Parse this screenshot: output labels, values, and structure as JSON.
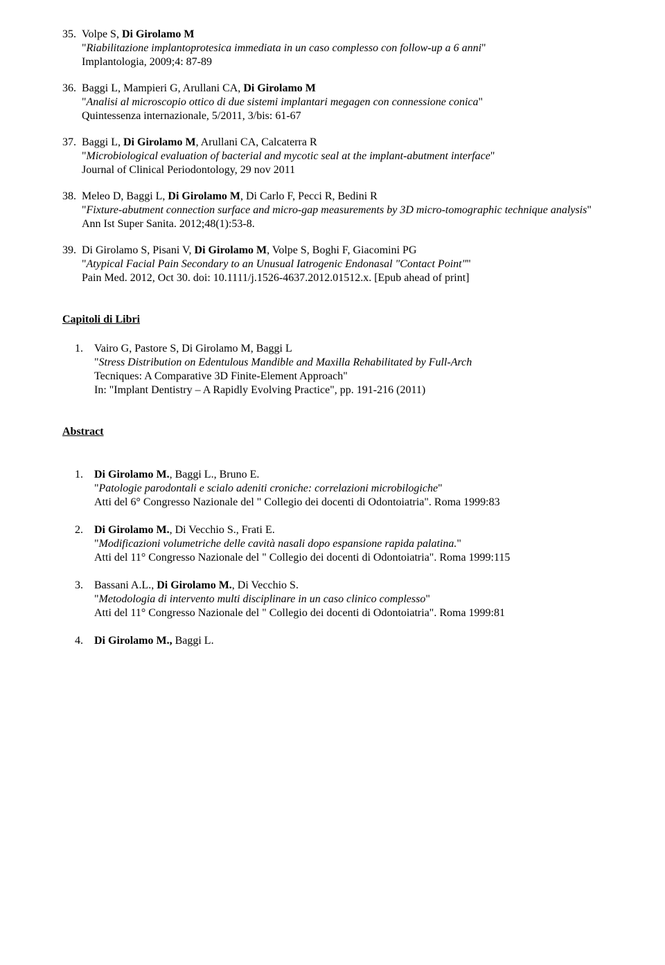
{
  "refs": [
    {
      "n": "35.",
      "authors_pre": "Volpe S, ",
      "authors_bold": "Di Girolamo M",
      "title_open": "\"",
      "title": "Riabilitazione implantoprotesica immediata in un caso complesso con follow-up a 6 anni",
      "title_close": "\"",
      "journal": "Implantologia, 2009;4: 87-89"
    },
    {
      "n": "36.",
      "authors_pre": "Baggi L, Mampieri G, Arullani CA, ",
      "authors_bold": "Di Girolamo M",
      "title_open": "\"",
      "title": "Analisi al microscopio ottico di due sistemi implantari megagen con connessione conica",
      "title_close": "\"",
      "journal": "Quintessenza internazionale, 5/2011, 3/bis: 61-67"
    },
    {
      "n": "37.",
      "authors_pre": "Baggi L, ",
      "authors_bold": "Di Girolamo M",
      "authors_post": ", Arullani CA, Calcaterra R",
      "title_open": "\"",
      "title": "Microbiological evaluation of bacterial and mycotic seal at the implant-abutment interface",
      "title_close": "\"",
      "journal": "Journal of Clinical Periodontology, 29 nov 2011"
    },
    {
      "n": "38.",
      "authors_pre": "Meleo D, Baggi L, ",
      "authors_bold": "Di Girolamo M",
      "authors_post": ", Di Carlo F, Pecci R, Bedini R",
      "title_open": "\"",
      "title": "Fixture-abutment connection surface and micro-gap measurements by 3D micro-tomographic technique analysis",
      "title_close": "\"",
      "journal": "Ann Ist Super Sanita. 2012;48(1):53-8."
    },
    {
      "n": "39.",
      "authors_pre": "Di Girolamo S, Pisani V, ",
      "authors_bold": "Di Girolamo M",
      "authors_post": ", Volpe S, Boghi F, Giacomini PG",
      "title_open": "\"",
      "title": "Atypical Facial Pain Secondary to an Unusual Iatrogenic Endonasal \"Contact Point\"",
      "title_close": "\"",
      "journal": "Pain Med. 2012, Oct 30. doi: 10.1111/j.1526-4637.2012.01512.x. [Epub ahead of print]"
    }
  ],
  "section_chapters": "Capitoli di Libri",
  "chapters": [
    {
      "n": "1.",
      "authors": "Vairo G, Pastore S, Di Girolamo M, Baggi L",
      "title_open": "\"",
      "title": "Stress Distribution on Edentulous Mandible and Maxilla Rehabilitated by Full-Arch",
      "subtitle": "Tecniques: A Comparative 3D Finite-Element Approach\"",
      "journal": "In: \"Implant Dentistry – A Rapidly Evolving Practice\", pp. 191-216 (2011)"
    }
  ],
  "section_abstract": "Abstract",
  "abstracts": [
    {
      "n": "1.",
      "authors_bold": "Di Girolamo M.",
      "authors_post": ", Baggi L., Bruno E.",
      "title_open": "\"",
      "title": "Patologie parodontali e scialo adeniti croniche: correlazioni microbilogiche",
      "title_close": "\"",
      "journal": "Atti del 6° Congresso Nazionale del \" Collegio dei docenti di Odontoiatria\". Roma 1999:83"
    },
    {
      "n": "2.",
      "authors_bold": "Di Girolamo M.",
      "authors_post": ", Di Vecchio S., Frati E.",
      "title_open": "\"",
      "title": "Modificazioni volumetriche delle cavità nasali dopo espansione rapida palatina.",
      "title_close": "\"",
      "journal": "Atti del 11° Congresso Nazionale del \" Collegio dei docenti di Odontoiatria\". Roma 1999:115"
    },
    {
      "n": "3.",
      "authors_pre": "Bassani A.L., ",
      "authors_bold": "Di Girolamo M.",
      "authors_post": ", Di Vecchio S.",
      "title_open": "\"",
      "title": "Metodologia di intervento multi disciplinare in un caso clinico complesso",
      "title_close": "\"",
      "journal": "Atti del 11° Congresso Nazionale del \" Collegio dei docenti di Odontoiatria\". Roma 1999:81"
    },
    {
      "n": "4.",
      "authors_bold": "Di Girolamo M.,",
      "authors_post": " Baggi L."
    }
  ]
}
